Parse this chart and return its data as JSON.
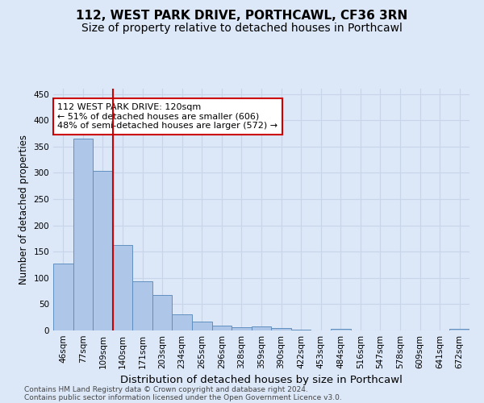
{
  "title": "112, WEST PARK DRIVE, PORTHCAWL, CF36 3RN",
  "subtitle": "Size of property relative to detached houses in Porthcawl",
  "xlabel": "Distribution of detached houses by size in Porthcawl",
  "ylabel": "Number of detached properties",
  "categories": [
    "46sqm",
    "77sqm",
    "109sqm",
    "140sqm",
    "171sqm",
    "203sqm",
    "234sqm",
    "265sqm",
    "296sqm",
    "328sqm",
    "359sqm",
    "390sqm",
    "422sqm",
    "453sqm",
    "484sqm",
    "516sqm",
    "547sqm",
    "578sqm",
    "609sqm",
    "641sqm",
    "672sqm"
  ],
  "values": [
    128,
    365,
    304,
    163,
    93,
    67,
    30,
    17,
    9,
    6,
    8,
    4,
    1,
    0,
    3,
    0,
    0,
    0,
    0,
    0,
    3
  ],
  "bar_color": "#aec6e8",
  "bar_edge_color": "#6090c0",
  "bar_edge_width": 0.7,
  "reference_line_x": 2.5,
  "reference_line_color": "#cc0000",
  "annotation_text": "112 WEST PARK DRIVE: 120sqm\n← 51% of detached houses are smaller (606)\n48% of semi-detached houses are larger (572) →",
  "annotation_box_color": "#ffffff",
  "annotation_box_edge_color": "#cc0000",
  "ylim": [
    0,
    460
  ],
  "yticks": [
    0,
    50,
    100,
    150,
    200,
    250,
    300,
    350,
    400,
    450
  ],
  "grid_color": "#c8d4e8",
  "background_color": "#dce8f8",
  "footer_line1": "Contains HM Land Registry data © Crown copyright and database right 2024.",
  "footer_line2": "Contains public sector information licensed under the Open Government Licence v3.0.",
  "title_fontsize": 11,
  "subtitle_fontsize": 10,
  "xlabel_fontsize": 9.5,
  "ylabel_fontsize": 8.5,
  "tick_fontsize": 7.5,
  "annotation_fontsize": 8,
  "footer_fontsize": 6.5
}
